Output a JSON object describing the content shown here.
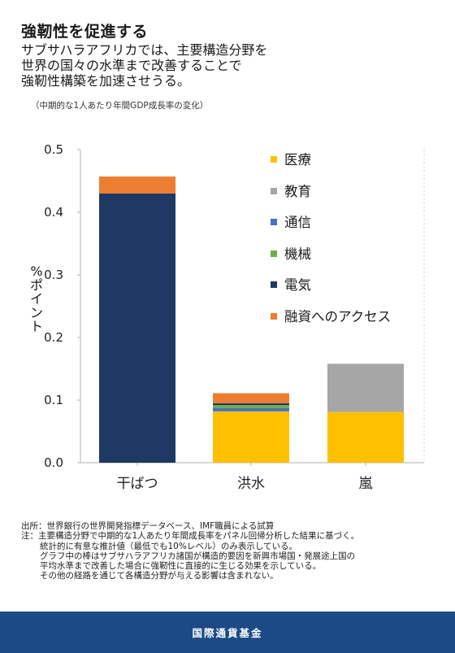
{
  "title": "強靭性を促進する",
  "subtitle_lines": [
    "サブサハラアフリカでは、主要構造分野を",
    "世界の国々の水準まで改善することで",
    "強靭性構築を加速させうる。"
  ],
  "caption": "（中期的な1人あたり年間GDP成長率の変化）",
  "chart_data": {
    "type": "bar",
    "stacked": true,
    "categories": [
      "干ばつ",
      "洪水",
      "嵐"
    ],
    "ylabel": "%ポイント",
    "ylim": [
      0,
      0.5
    ],
    "yticks": [
      "0.0",
      "0.1",
      "0.2",
      "0.3",
      "0.4",
      "0.5"
    ],
    "grid": false,
    "legend_placement": "top-right",
    "series": [
      {
        "name": "医療",
        "color": "#ffc000",
        "values": [
          0,
          0.082,
          0.081
        ]
      },
      {
        "name": "教育",
        "color": "#a6a6a6",
        "values": [
          0,
          0,
          0.077
        ]
      },
      {
        "name": "通信",
        "color": "#4472c4",
        "values": [
          0,
          0.005,
          0
        ]
      },
      {
        "name": "機械",
        "color": "#70ad47",
        "values": [
          0,
          0.005,
          0
        ]
      },
      {
        "name": "電気",
        "color": "#203864",
        "values": [
          0.43,
          0.003,
          0
        ]
      },
      {
        "name": "融資へのアクセス",
        "color": "#ed7d31",
        "values": [
          0.027,
          0.016,
          0
        ]
      }
    ]
  },
  "notes": {
    "source": "出所：世界銀行の世界開発指標データベース、IMF職員による試算",
    "note_lines": [
      "注：主要構造分野で中期的な1人あたり年間成長率をパネル回帰分析した結果に基づく。",
      "統計的に有意な推計値（最低でも10%レベル）のみ表示している。",
      "グラフ中の棒はサブサハラアフリカ諸国が構造的要因を新興市場国・発展途上国の",
      "平均水準まで改善した場合に強靭性に直接的に生じる効果を示している。",
      "その他の経路を通じて各構造分野が与える影響は含まれない。"
    ]
  },
  "footer": "国際通貨基金"
}
